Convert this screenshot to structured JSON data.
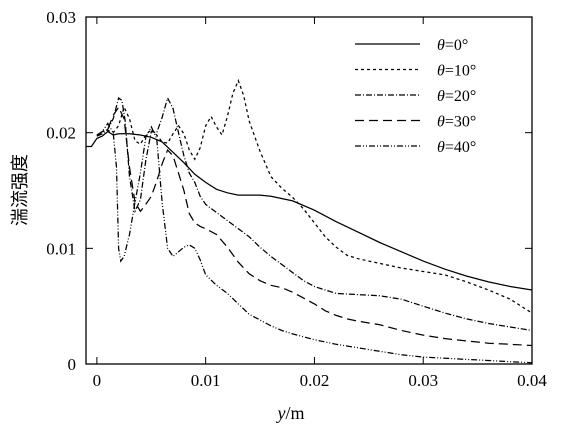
{
  "chart_data": {
    "type": "line",
    "xlabel": "y/m",
    "xlabel_var": "y",
    "xlabel_unit": "/m",
    "ylabel": "湍流强度",
    "xlim": [
      -0.001,
      0.04
    ],
    "ylim": [
      0,
      0.03
    ],
    "x_ticks": [
      0,
      0.01,
      0.02,
      0.03,
      0.04
    ],
    "x_tick_labels": [
      "0",
      "0.01",
      "0.02",
      "0.03",
      "0.04"
    ],
    "y_ticks": [
      0,
      0.01,
      0.02,
      0.03
    ],
    "y_tick_labels": [
      "0",
      "0.01",
      "0.02",
      "0.03"
    ],
    "grid": false,
    "legend_position": "top-right",
    "series": [
      {
        "name": "θ=0°",
        "var": "θ",
        "val": "=0°",
        "dash": "",
        "points": [
          [
            -0.001,
            0.0188
          ],
          [
            -0.0005,
            0.0188
          ],
          [
            0,
            0.0195
          ],
          [
            0.0005,
            0.0197
          ],
          [
            0.001,
            0.0201
          ],
          [
            0.0015,
            0.0198
          ],
          [
            0.002,
            0.0199
          ],
          [
            0.003,
            0.0199
          ],
          [
            0.004,
            0.0198
          ],
          [
            0.005,
            0.0196
          ],
          [
            0.006,
            0.0192
          ],
          [
            0.007,
            0.0183
          ],
          [
            0.008,
            0.0174
          ],
          [
            0.009,
            0.0164
          ],
          [
            0.01,
            0.0157
          ],
          [
            0.011,
            0.0151
          ],
          [
            0.012,
            0.0148
          ],
          [
            0.013,
            0.0146
          ],
          [
            0.015,
            0.0146
          ],
          [
            0.016,
            0.0145
          ],
          [
            0.018,
            0.0141
          ],
          [
            0.02,
            0.0133
          ],
          [
            0.022,
            0.0123
          ],
          [
            0.024,
            0.0114
          ],
          [
            0.026,
            0.0105
          ],
          [
            0.028,
            0.0097
          ],
          [
            0.03,
            0.0089
          ],
          [
            0.032,
            0.0082
          ],
          [
            0.034,
            0.0076
          ],
          [
            0.036,
            0.0071
          ],
          [
            0.038,
            0.0067
          ],
          [
            0.04,
            0.0064
          ]
        ]
      },
      {
        "name": "θ=10°",
        "var": "θ",
        "val": "=10°",
        "dash": "3,3",
        "points": [
          [
            0,
            0.0197
          ],
          [
            0.0005,
            0.0201
          ],
          [
            0.001,
            0.0202
          ],
          [
            0.0015,
            0.02
          ],
          [
            0.002,
            0.0206
          ],
          [
            0.0025,
            0.0222
          ],
          [
            0.003,
            0.0212
          ],
          [
            0.0035,
            0.0193
          ],
          [
            0.004,
            0.019
          ],
          [
            0.0045,
            0.0198
          ],
          [
            0.005,
            0.0203
          ],
          [
            0.0055,
            0.0198
          ],
          [
            0.006,
            0.0192
          ],
          [
            0.0065,
            0.0191
          ],
          [
            0.007,
            0.0199
          ],
          [
            0.0075,
            0.0206
          ],
          [
            0.008,
            0.0199
          ],
          [
            0.0085,
            0.0185
          ],
          [
            0.009,
            0.0177
          ],
          [
            0.0095,
            0.0187
          ],
          [
            0.01,
            0.0206
          ],
          [
            0.0105,
            0.0214
          ],
          [
            0.011,
            0.0205
          ],
          [
            0.0115,
            0.0198
          ],
          [
            0.012,
            0.0214
          ],
          [
            0.0125,
            0.0234
          ],
          [
            0.013,
            0.0245
          ],
          [
            0.0135,
            0.0232
          ],
          [
            0.014,
            0.021
          ],
          [
            0.015,
            0.0184
          ],
          [
            0.016,
            0.0162
          ],
          [
            0.017,
            0.0152
          ],
          [
            0.018,
            0.0144
          ],
          [
            0.019,
            0.0134
          ],
          [
            0.02,
            0.0122
          ],
          [
            0.021,
            0.011
          ],
          [
            0.022,
            0.0101
          ],
          [
            0.023,
            0.0094
          ],
          [
            0.024,
            0.0091
          ],
          [
            0.026,
            0.0087
          ],
          [
            0.028,
            0.0083
          ],
          [
            0.03,
            0.008
          ],
          [
            0.032,
            0.0077
          ],
          [
            0.034,
            0.0071
          ],
          [
            0.036,
            0.0064
          ],
          [
            0.038,
            0.0056
          ],
          [
            0.04,
            0.0044
          ]
        ]
      },
      {
        "name": "θ=20°",
        "var": "θ",
        "val": "=20°",
        "dash": "6,2,1,2",
        "points": [
          [
            0,
            0.0197
          ],
          [
            0.0005,
            0.0199
          ],
          [
            0.001,
            0.0203
          ],
          [
            0.0015,
            0.0212
          ],
          [
            0.002,
            0.023
          ],
          [
            0.0023,
            0.0228
          ],
          [
            0.0026,
            0.021
          ],
          [
            0.003,
            0.0162
          ],
          [
            0.0035,
            0.0132
          ],
          [
            0.004,
            0.0142
          ],
          [
            0.0045,
            0.0176
          ],
          [
            0.005,
            0.0201
          ],
          [
            0.0055,
            0.02
          ],
          [
            0.006,
            0.0213
          ],
          [
            0.0065,
            0.023
          ],
          [
            0.007,
            0.0221
          ],
          [
            0.0075,
            0.02
          ],
          [
            0.008,
            0.018
          ],
          [
            0.0085,
            0.0165
          ],
          [
            0.009,
            0.0157
          ],
          [
            0.0095,
            0.0145
          ],
          [
            0.01,
            0.0138
          ],
          [
            0.011,
            0.0131
          ],
          [
            0.012,
            0.0124
          ],
          [
            0.013,
            0.0117
          ],
          [
            0.014,
            0.011
          ],
          [
            0.015,
            0.0101
          ],
          [
            0.016,
            0.0093
          ],
          [
            0.017,
            0.0086
          ],
          [
            0.018,
            0.0079
          ],
          [
            0.019,
            0.0072
          ],
          [
            0.02,
            0.0067
          ],
          [
            0.021,
            0.0064
          ],
          [
            0.022,
            0.0061
          ],
          [
            0.024,
            0.006
          ],
          [
            0.026,
            0.0059
          ],
          [
            0.028,
            0.0056
          ],
          [
            0.03,
            0.005
          ],
          [
            0.032,
            0.0044
          ],
          [
            0.034,
            0.0039
          ],
          [
            0.036,
            0.0035
          ],
          [
            0.038,
            0.0032
          ],
          [
            0.04,
            0.0029
          ]
        ]
      },
      {
        "name": "θ=30°",
        "var": "θ",
        "val": "=30°",
        "dash": "9,5",
        "points": [
          [
            0,
            0.0197
          ],
          [
            0.0005,
            0.0201
          ],
          [
            0.001,
            0.0203
          ],
          [
            0.0015,
            0.0215
          ],
          [
            0.002,
            0.0222
          ],
          [
            0.0025,
            0.0212
          ],
          [
            0.003,
            0.017
          ],
          [
            0.0035,
            0.014
          ],
          [
            0.004,
            0.0132
          ],
          [
            0.0045,
            0.0138
          ],
          [
            0.005,
            0.0145
          ],
          [
            0.0055,
            0.0158
          ],
          [
            0.006,
            0.0173
          ],
          [
            0.0065,
            0.0185
          ],
          [
            0.007,
            0.018
          ],
          [
            0.0075,
            0.0165
          ],
          [
            0.008,
            0.015
          ],
          [
            0.0085,
            0.013
          ],
          [
            0.009,
            0.0122
          ],
          [
            0.0095,
            0.0119
          ],
          [
            0.01,
            0.0117
          ],
          [
            0.011,
            0.0112
          ],
          [
            0.012,
            0.0101
          ],
          [
            0.013,
            0.0088
          ],
          [
            0.014,
            0.0078
          ],
          [
            0.015,
            0.0072
          ],
          [
            0.016,
            0.0068
          ],
          [
            0.017,
            0.0066
          ],
          [
            0.018,
            0.0062
          ],
          [
            0.019,
            0.0057
          ],
          [
            0.02,
            0.0052
          ],
          [
            0.021,
            0.0046
          ],
          [
            0.022,
            0.0042
          ],
          [
            0.023,
            0.0039
          ],
          [
            0.024,
            0.0037
          ],
          [
            0.026,
            0.0034
          ],
          [
            0.028,
            0.0029
          ],
          [
            0.03,
            0.0025
          ],
          [
            0.032,
            0.0022
          ],
          [
            0.034,
            0.002
          ],
          [
            0.036,
            0.0018
          ],
          [
            0.038,
            0.0017
          ],
          [
            0.04,
            0.0016
          ]
        ]
      },
      {
        "name": "θ=40°",
        "var": "θ",
        "val": "=40°",
        "dash": "6,2,1,2,1,2",
        "points": [
          [
            0,
            0.0198
          ],
          [
            0.0005,
            0.0201
          ],
          [
            0.001,
            0.0208
          ],
          [
            0.0015,
            0.02
          ],
          [
            0.0018,
            0.017
          ],
          [
            0.002,
            0.01
          ],
          [
            0.0022,
            0.0089
          ],
          [
            0.0025,
            0.0093
          ],
          [
            0.003,
            0.0112
          ],
          [
            0.0035,
            0.014
          ],
          [
            0.004,
            0.0165
          ],
          [
            0.0045,
            0.0196
          ],
          [
            0.005,
            0.0205
          ],
          [
            0.0055,
            0.0195
          ],
          [
            0.006,
            0.014
          ],
          [
            0.0065,
            0.01
          ],
          [
            0.007,
            0.0093
          ],
          [
            0.0075,
            0.0097
          ],
          [
            0.008,
            0.0101
          ],
          [
            0.0085,
            0.0103
          ],
          [
            0.009,
            0.01
          ],
          [
            0.0095,
            0.009
          ],
          [
            0.01,
            0.0077
          ],
          [
            0.011,
            0.0068
          ],
          [
            0.012,
            0.0061
          ],
          [
            0.013,
            0.0052
          ],
          [
            0.014,
            0.0043
          ],
          [
            0.015,
            0.0038
          ],
          [
            0.016,
            0.0033
          ],
          [
            0.017,
            0.0029
          ],
          [
            0.018,
            0.0026
          ],
          [
            0.02,
            0.0021
          ],
          [
            0.022,
            0.0017
          ],
          [
            0.024,
            0.0014
          ],
          [
            0.026,
            0.0011
          ],
          [
            0.028,
            0.0008
          ],
          [
            0.03,
            0.0006
          ],
          [
            0.032,
            0.0005
          ],
          [
            0.034,
            0.0004
          ],
          [
            0.036,
            0.0003
          ],
          [
            0.038,
            0.0002
          ],
          [
            0.04,
            0.0001
          ]
        ]
      }
    ]
  }
}
